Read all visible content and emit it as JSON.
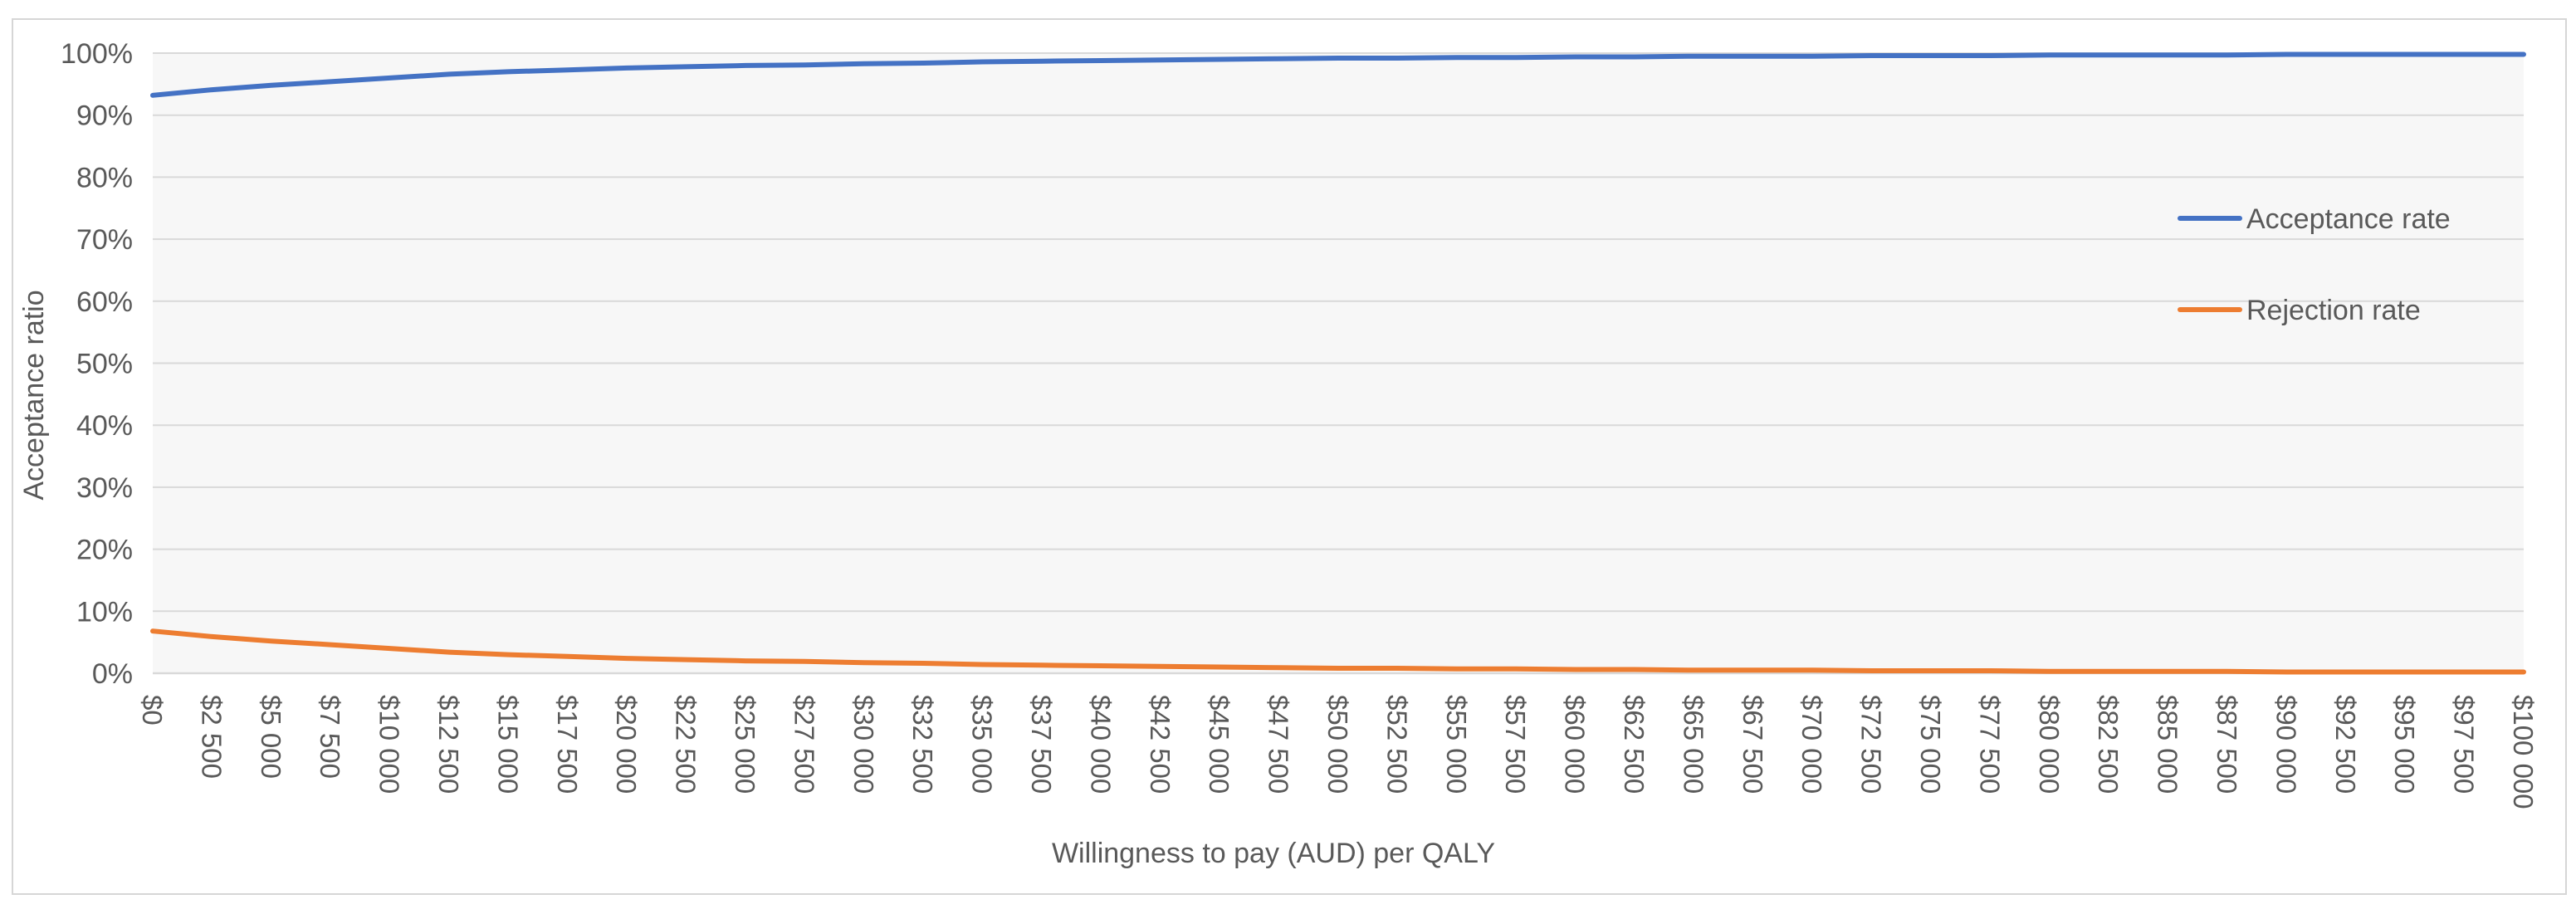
{
  "chart_data": {
    "type": "line",
    "title": "",
    "xlabel": "Willingness to pay (AUD) per QALY",
    "ylabel": "Acceptance ratio",
    "xlim": [
      0,
      100000
    ],
    "ylim": [
      0,
      1
    ],
    "y_ticks": [
      0,
      0.1,
      0.2,
      0.3,
      0.4,
      0.5,
      0.6,
      0.7,
      0.8,
      0.9,
      1.0
    ],
    "y_tick_labels": [
      "0%",
      "10%",
      "20%",
      "30%",
      "40%",
      "50%",
      "60%",
      "70%",
      "80%",
      "90%",
      "100%"
    ],
    "x_ticks": [
      0,
      2500,
      5000,
      7500,
      10000,
      12500,
      15000,
      17500,
      20000,
      22500,
      25000,
      27500,
      30000,
      32500,
      35000,
      37500,
      40000,
      42500,
      45000,
      47500,
      50000,
      52500,
      55000,
      57500,
      60000,
      62500,
      65000,
      67500,
      70000,
      72500,
      75000,
      77500,
      80000,
      82500,
      85000,
      87500,
      90000,
      92500,
      95000,
      97500,
      100000
    ],
    "x_tick_labels": [
      "$0",
      "$2 500",
      "$5 000",
      "$7 500",
      "$10 000",
      "$12 500",
      "$15 000",
      "$17 500",
      "$20 000",
      "$22 500",
      "$25 000",
      "$27 500",
      "$30 000",
      "$32 500",
      "$35 000",
      "$37 500",
      "$40 000",
      "$42 500",
      "$45 000",
      "$47 500",
      "$50 000",
      "$52 500",
      "$55 000",
      "$57 500",
      "$60 000",
      "$62 500",
      "$65 000",
      "$67 500",
      "$70 000",
      "$72 500",
      "$75 000",
      "$77 500",
      "$80 000",
      "$82 500",
      "$85 000",
      "$87 500",
      "$90 000",
      "$92 500",
      "$95 000",
      "$97 500",
      "$100 000"
    ],
    "grid": "horizontal",
    "legend_position": "right",
    "plot_background": "#f7f7f7",
    "grid_color": "#d9d9d9",
    "x": [
      0,
      2500,
      5000,
      7500,
      10000,
      12500,
      15000,
      17500,
      20000,
      22500,
      25000,
      27500,
      30000,
      32500,
      35000,
      37500,
      40000,
      42500,
      45000,
      47500,
      50000,
      52500,
      55000,
      57500,
      60000,
      62500,
      65000,
      67500,
      70000,
      72500,
      75000,
      77500,
      80000,
      82500,
      85000,
      87500,
      90000,
      92500,
      95000,
      97500,
      100000
    ],
    "series": [
      {
        "name": "Acceptance rate",
        "color": "#4472c4",
        "values": [
          0.932,
          0.941,
          0.948,
          0.954,
          0.96,
          0.966,
          0.97,
          0.973,
          0.976,
          0.978,
          0.98,
          0.981,
          0.983,
          0.984,
          0.986,
          0.987,
          0.988,
          0.989,
          0.99,
          0.991,
          0.992,
          0.992,
          0.993,
          0.993,
          0.994,
          0.994,
          0.995,
          0.995,
          0.995,
          0.996,
          0.996,
          0.996,
          0.997,
          0.997,
          0.997,
          0.997,
          0.998,
          0.998,
          0.998,
          0.998,
          0.998
        ]
      },
      {
        "name": "Rejection rate",
        "color": "#ed7d31",
        "values": [
          0.068,
          0.059,
          0.052,
          0.046,
          0.04,
          0.034,
          0.03,
          0.027,
          0.024,
          0.022,
          0.02,
          0.019,
          0.017,
          0.016,
          0.014,
          0.013,
          0.012,
          0.011,
          0.01,
          0.009,
          0.008,
          0.008,
          0.007,
          0.007,
          0.006,
          0.006,
          0.005,
          0.005,
          0.005,
          0.004,
          0.004,
          0.004,
          0.003,
          0.003,
          0.003,
          0.003,
          0.002,
          0.002,
          0.002,
          0.002,
          0.002
        ]
      }
    ]
  }
}
